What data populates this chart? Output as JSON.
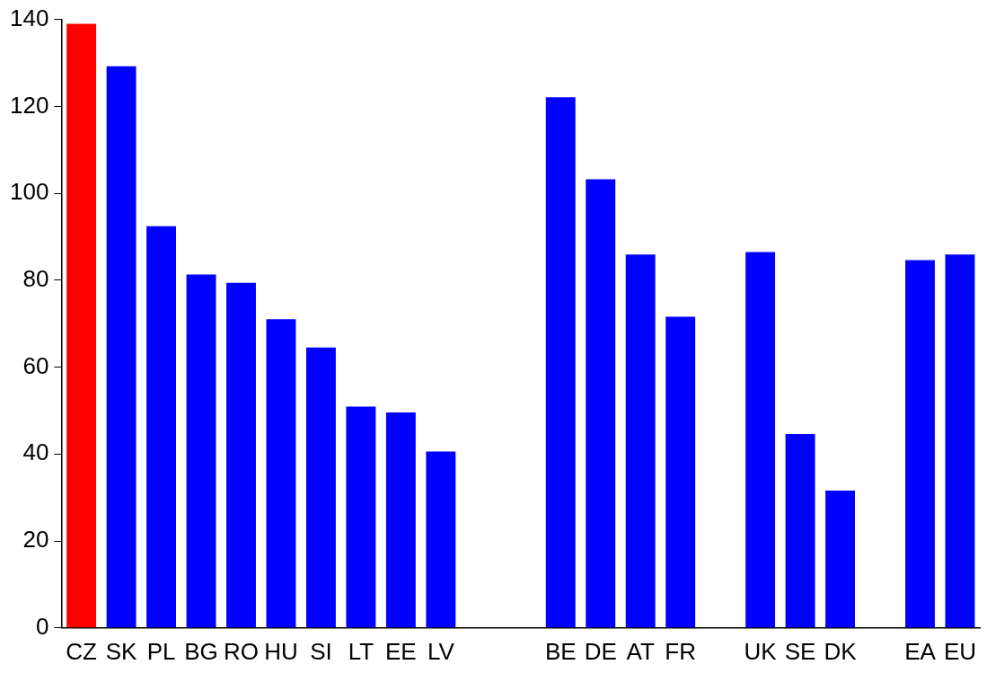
{
  "chart_data": {
    "type": "bar",
    "categories": [
      "CZ",
      "SK",
      "PL",
      "BG",
      "RO",
      "HU",
      "SI",
      "LT",
      "EE",
      "LV",
      null,
      null,
      "BE",
      "DE",
      "AT",
      "FR",
      null,
      "UK",
      "SE",
      "DK",
      null,
      "EA",
      "EU"
    ],
    "values": [
      139,
      129.2,
      92.4,
      81.3,
      79.4,
      71.0,
      64.5,
      50.9,
      49.6,
      40.6,
      null,
      null,
      122.1,
      103.2,
      85.9,
      71.6,
      null,
      86.5,
      44.6,
      31.6,
      null,
      84.6,
      85.9
    ],
    "colors": [
      "#ff0000",
      "#0000ff",
      "#0000ff",
      "#0000ff",
      "#0000ff",
      "#0000ff",
      "#0000ff",
      "#0000ff",
      "#0000ff",
      "#0000ff",
      "#0000ff",
      "#0000ff",
      "#0000ff",
      "#0000ff",
      "#0000ff",
      "#0000ff",
      "#0000ff",
      "#0000ff",
      "#0000ff",
      "#0000ff",
      "#0000ff",
      "#0000ff",
      "#0000ff"
    ],
    "ylim": [
      0,
      140
    ],
    "yticks": [
      0,
      20,
      40,
      60,
      80,
      100,
      120,
      140
    ],
    "grid": false,
    "legend": false
  }
}
